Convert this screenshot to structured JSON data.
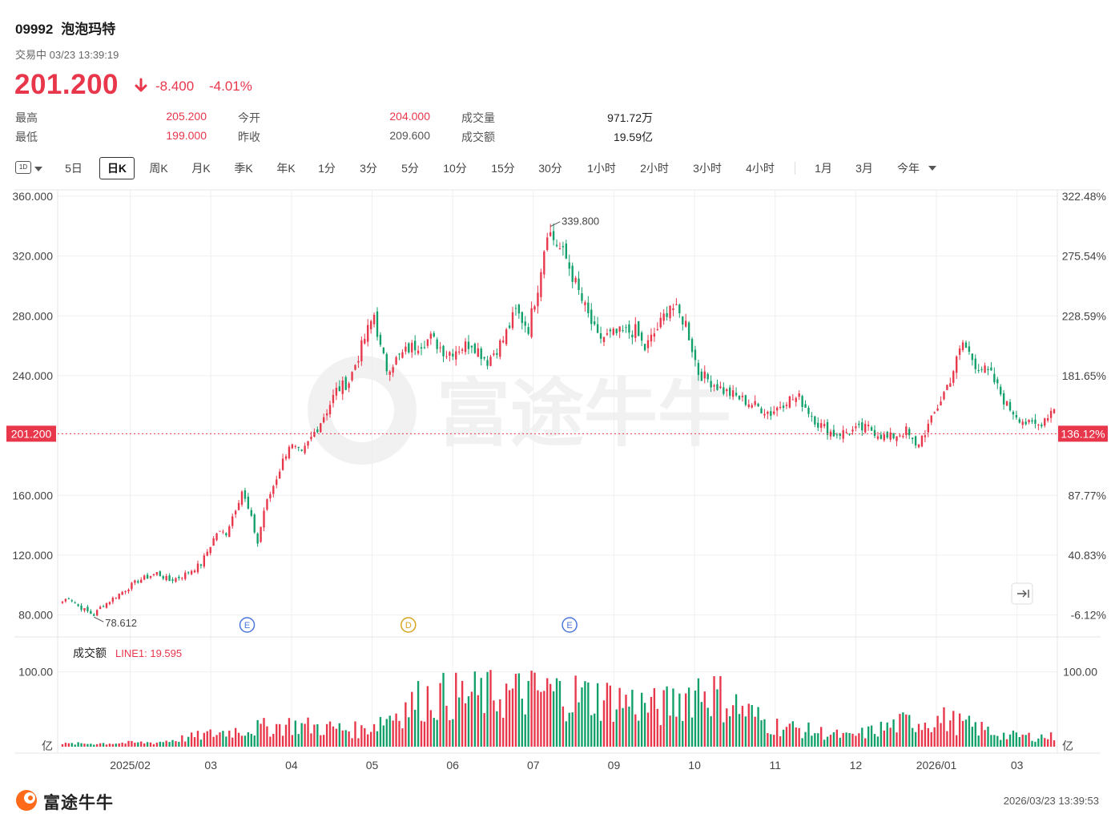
{
  "header": {
    "code": "09992",
    "name": "泡泡玛特",
    "status": "交易中 03/23 13:39:19",
    "price": "201.200",
    "change": "-8.400",
    "change_pct": "-4.01%",
    "stats": [
      {
        "label": "最高",
        "value": "205.200",
        "color": "red"
      },
      {
        "label": "最低",
        "value": "199.000",
        "color": "red"
      },
      {
        "label": "今开",
        "value": "204.000",
        "color": "red"
      },
      {
        "label": "昨收",
        "value": "209.600",
        "color": "grey"
      },
      {
        "label": "成交量",
        "value": "971.72万",
        "color": "dark"
      },
      {
        "label": "成交额",
        "value": "19.59亿",
        "color": "dark"
      }
    ]
  },
  "toolbar": {
    "period_icon": "1D",
    "items": [
      "5日",
      "日K",
      "周K",
      "月K",
      "季K",
      "年K",
      "1分",
      "3分",
      "5分",
      "10分",
      "15分",
      "30分",
      "1小时",
      "2小时",
      "3小时",
      "4小时",
      "1月",
      "3月",
      "今年"
    ],
    "active": "日K"
  },
  "colors": {
    "up": "#e8364b",
    "down": "#12a06a",
    "accent": "#e8364b",
    "grid": "#efefef"
  },
  "chart_data": {
    "type": "candlestick",
    "period": "daily",
    "price_axis": {
      "ticks": [
        "360.000",
        "320.000",
        "280.000",
        "240.000",
        "160.000",
        "120.000",
        "80.000"
      ],
      "ylim": [
        68,
        368
      ]
    },
    "pct_axis": {
      "ticks": [
        "322.48%",
        "275.54%",
        "228.59%",
        "181.65%",
        "87.77%",
        "40.83%",
        "-6.12%"
      ]
    },
    "current_price_label": "201.200",
    "current_pct_label": "136.12%",
    "high_label": "339.800",
    "low_label": "78.612",
    "x_axis": {
      "labels": [
        "2025/02",
        "03",
        "04",
        "05",
        "06",
        "07",
        "09",
        "10",
        "11",
        "12",
        "2026/01",
        "03"
      ]
    },
    "markers": [
      {
        "label": "E",
        "color": "#4a77d8",
        "month": "03"
      },
      {
        "label": "D",
        "color": "#d6a41c",
        "month": "05"
      },
      {
        "label": "E",
        "color": "#4a77d8",
        "month": "07"
      }
    ],
    "close_path": [
      [
        0,
        89
      ],
      [
        2,
        92
      ],
      [
        5,
        86
      ],
      [
        9,
        81
      ],
      [
        10,
        80
      ],
      [
        12,
        85
      ],
      [
        18,
        94
      ],
      [
        24,
        103
      ],
      [
        30,
        108
      ],
      [
        34,
        103
      ],
      [
        38,
        106
      ],
      [
        44,
        114
      ],
      [
        49,
        135
      ],
      [
        52,
        135
      ],
      [
        57,
        163
      ],
      [
        60,
        144
      ],
      [
        62,
        128
      ],
      [
        64,
        150
      ],
      [
        68,
        172
      ],
      [
        72,
        194
      ],
      [
        76,
        187
      ],
      [
        80,
        202
      ],
      [
        84,
        217
      ],
      [
        87,
        230
      ],
      [
        91,
        236
      ],
      [
        96,
        265
      ],
      [
        99,
        281
      ],
      [
        101,
        258
      ],
      [
        103,
        245
      ],
      [
        110,
        258
      ],
      [
        117,
        265
      ],
      [
        122,
        255
      ],
      [
        130,
        262
      ],
      [
        135,
        250
      ],
      [
        140,
        264
      ],
      [
        144,
        283
      ],
      [
        148,
        272
      ],
      [
        151,
        300
      ],
      [
        154,
        338
      ],
      [
        160,
        318
      ],
      [
        165,
        290
      ],
      [
        170,
        265
      ],
      [
        176,
        268
      ],
      [
        182,
        270
      ],
      [
        185,
        258
      ],
      [
        190,
        275
      ],
      [
        193,
        288
      ],
      [
        198,
        275
      ],
      [
        202,
        242
      ],
      [
        210,
        230
      ],
      [
        218,
        222
      ],
      [
        225,
        215
      ],
      [
        230,
        224
      ],
      [
        234,
        225
      ],
      [
        240,
        208
      ],
      [
        245,
        201
      ],
      [
        251,
        203
      ],
      [
        256,
        205
      ],
      [
        262,
        198
      ],
      [
        268,
        203
      ],
      [
        271,
        192
      ],
      [
        276,
        210
      ],
      [
        282,
        238
      ],
      [
        286,
        262
      ],
      [
        290,
        248
      ],
      [
        295,
        240
      ],
      [
        300,
        220
      ],
      [
        304,
        212
      ],
      [
        307,
        207
      ],
      [
        310,
        207
      ],
      [
        315,
        219
      ]
    ],
    "volume": {
      "title": "成交额",
      "line_label": "LINE1: 19.595",
      "unit": "亿",
      "tick": "100.00",
      "ylim": [
        0,
        120
      ],
      "peaks": [
        [
          0,
          5
        ],
        [
          30,
          8
        ],
        [
          55,
          30
        ],
        [
          72,
          40
        ],
        [
          95,
          30
        ],
        [
          115,
          90
        ],
        [
          155,
          100
        ],
        [
          178,
          85
        ],
        [
          190,
          70
        ],
        [
          203,
          110
        ],
        [
          225,
          40
        ],
        [
          250,
          18
        ],
        [
          268,
          45
        ],
        [
          280,
          50
        ],
        [
          300,
          20
        ],
        [
          315,
          18
        ]
      ]
    }
  },
  "footer": {
    "brand": "富途牛牛",
    "timestamp": "2026/03/23 13:39:53"
  }
}
